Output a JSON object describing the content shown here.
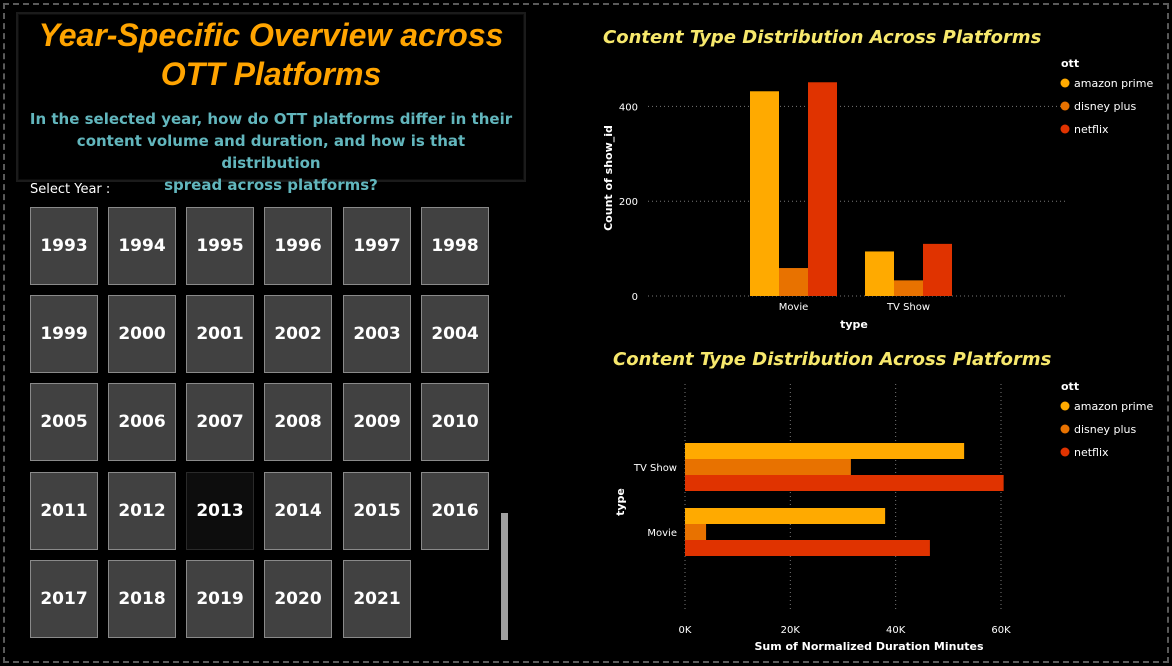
{
  "header": {
    "title_line1": "Year-Specific Overview across",
    "title_line2": "OTT Platforms",
    "question_line1": "In the selected year, how do OTT platforms differ in their",
    "question_line2": "content volume and duration, and how is that distribution",
    "question_line3": "spread across platforms?"
  },
  "slicer": {
    "label": "Select Year :",
    "selected": "2013",
    "years": [
      "1993",
      "1994",
      "1995",
      "1996",
      "1997",
      "1998",
      "1999",
      "2000",
      "2001",
      "2002",
      "2003",
      "2004",
      "2005",
      "2006",
      "2007",
      "2008",
      "2009",
      "2010",
      "2011",
      "2012",
      "2013",
      "2014",
      "2015",
      "2016",
      "2017",
      "2018",
      "2019",
      "2020",
      "2021"
    ]
  },
  "colors": {
    "amazon prime": "#ffaa00",
    "disney plus": "#e87200",
    "netflix": "#e03300"
  },
  "chart_data": [
    {
      "type": "bar",
      "orientation": "vertical",
      "title": "Content Type Distribution Across Platforms",
      "xlabel": "type",
      "ylabel": "Count of show_id",
      "categories": [
        "Movie",
        "TV Show"
      ],
      "legend_title": "ott",
      "legend_position": "top-right",
      "series": [
        {
          "name": "amazon prime",
          "values": [
            432,
            94
          ]
        },
        {
          "name": "disney plus",
          "values": [
            59,
            33
          ]
        },
        {
          "name": "netflix",
          "values": [
            451,
            110
          ]
        }
      ],
      "ylim": [
        0,
        460
      ],
      "yticks": [
        0,
        200,
        400
      ],
      "grid": true
    },
    {
      "type": "bar",
      "orientation": "horizontal",
      "title": "Content Type Distribution Across Platforms",
      "xlabel": "Sum of Normalized Duration Minutes",
      "ylabel": "type",
      "categories": [
        "TV Show",
        "Movie"
      ],
      "legend_title": "ott",
      "legend_position": "top-right",
      "series": [
        {
          "name": "amazon prime",
          "values": [
            53000,
            38000
          ]
        },
        {
          "name": "disney plus",
          "values": [
            31500,
            4000
          ]
        },
        {
          "name": "netflix",
          "values": [
            60500,
            46500
          ]
        }
      ],
      "xlim": [
        0,
        60000
      ],
      "xticks": [
        0,
        20000,
        40000,
        60000
      ],
      "xtick_labels": [
        "0K",
        "20K",
        "40K",
        "60K"
      ],
      "grid": true
    }
  ]
}
